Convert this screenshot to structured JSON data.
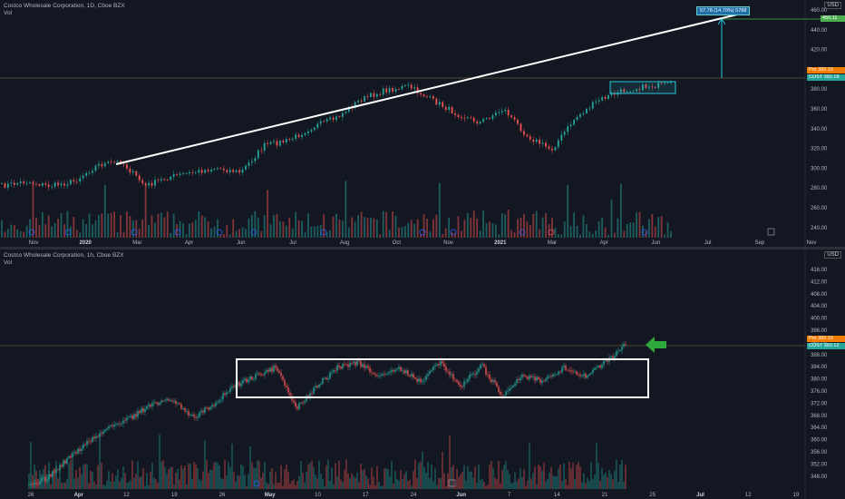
{
  "pane1": {
    "title": "Costco Wholesale Corporation, 1D, Cboe BZX",
    "vol_label": "Vol",
    "currency": "USD",
    "y_ticks": [
      "460.00",
      "440.00",
      "420.00",
      "400.00",
      "380.00",
      "360.00",
      "340.00",
      "320.00",
      "300.00",
      "280.00",
      "260.00",
      "240.00"
    ],
    "x_ticks": [
      {
        "label": "Nov",
        "bold": false
      },
      {
        "label": "2020",
        "bold": true
      },
      {
        "label": "Mar",
        "bold": false
      },
      {
        "label": "Apr",
        "bold": false
      },
      {
        "label": "Jun",
        "bold": false
      },
      {
        "label": "Jul",
        "bold": false
      },
      {
        "label": "Aug",
        "bold": false
      },
      {
        "label": "Oct",
        "bold": false
      },
      {
        "label": "Nov",
        "bold": false
      },
      {
        "label": "2021",
        "bold": true
      },
      {
        "label": "Mar",
        "bold": false
      },
      {
        "label": "Apr",
        "bold": false
      },
      {
        "label": "Jun",
        "bold": false
      },
      {
        "label": "Jul",
        "bold": false
      },
      {
        "label": "Sep",
        "bold": false
      },
      {
        "label": "Nov",
        "bold": false
      }
    ],
    "measure_label": "57.78 (14.70%) 5788",
    "target_tag": "450.11",
    "pre_tag": "Pre 392.15",
    "cost_tag": "COST 392.18",
    "event_markers": [
      "D",
      "D",
      "D",
      "D",
      "D",
      "D",
      "D",
      "D",
      "D",
      "D",
      "E",
      "E"
    ],
    "colors": {
      "up": "#26a69a",
      "down": "#ef5350",
      "trendline": "#ffffff",
      "box": "#26c6da",
      "target": "#4caf50"
    }
  },
  "pane2": {
    "title": "Costco Wholesale Corporation, 1h, Cboe BZX",
    "vol_label": "Vol",
    "currency": "USD",
    "y_ticks": [
      "416.00",
      "412.00",
      "408.00",
      "404.00",
      "400.00",
      "396.00",
      "392.00",
      "388.00",
      "384.00",
      "380.00",
      "376.00",
      "372.00",
      "368.00",
      "364.00",
      "360.00",
      "356.00",
      "352.00",
      "348.00"
    ],
    "x_ticks": [
      {
        "label": "26",
        "bold": false
      },
      {
        "label": "Apr",
        "bold": true
      },
      {
        "label": "12",
        "bold": false
      },
      {
        "label": "19",
        "bold": false
      },
      {
        "label": "26",
        "bold": false
      },
      {
        "label": "May",
        "bold": true
      },
      {
        "label": "10",
        "bold": false
      },
      {
        "label": "17",
        "bold": false
      },
      {
        "label": "24",
        "bold": false
      },
      {
        "label": "Jun",
        "bold": true
      },
      {
        "label": "7",
        "bold": false
      },
      {
        "label": "14",
        "bold": false
      },
      {
        "label": "21",
        "bold": false
      },
      {
        "label": "25",
        "bold": false
      },
      {
        "label": "Jul",
        "bold": true
      },
      {
        "label": "12",
        "bold": false
      },
      {
        "label": "19",
        "bold": false
      }
    ],
    "pre_tag": "Pre 392.15",
    "cost_tag": "COST 392.12",
    "event_markers": [
      "D",
      "E"
    ]
  }
}
